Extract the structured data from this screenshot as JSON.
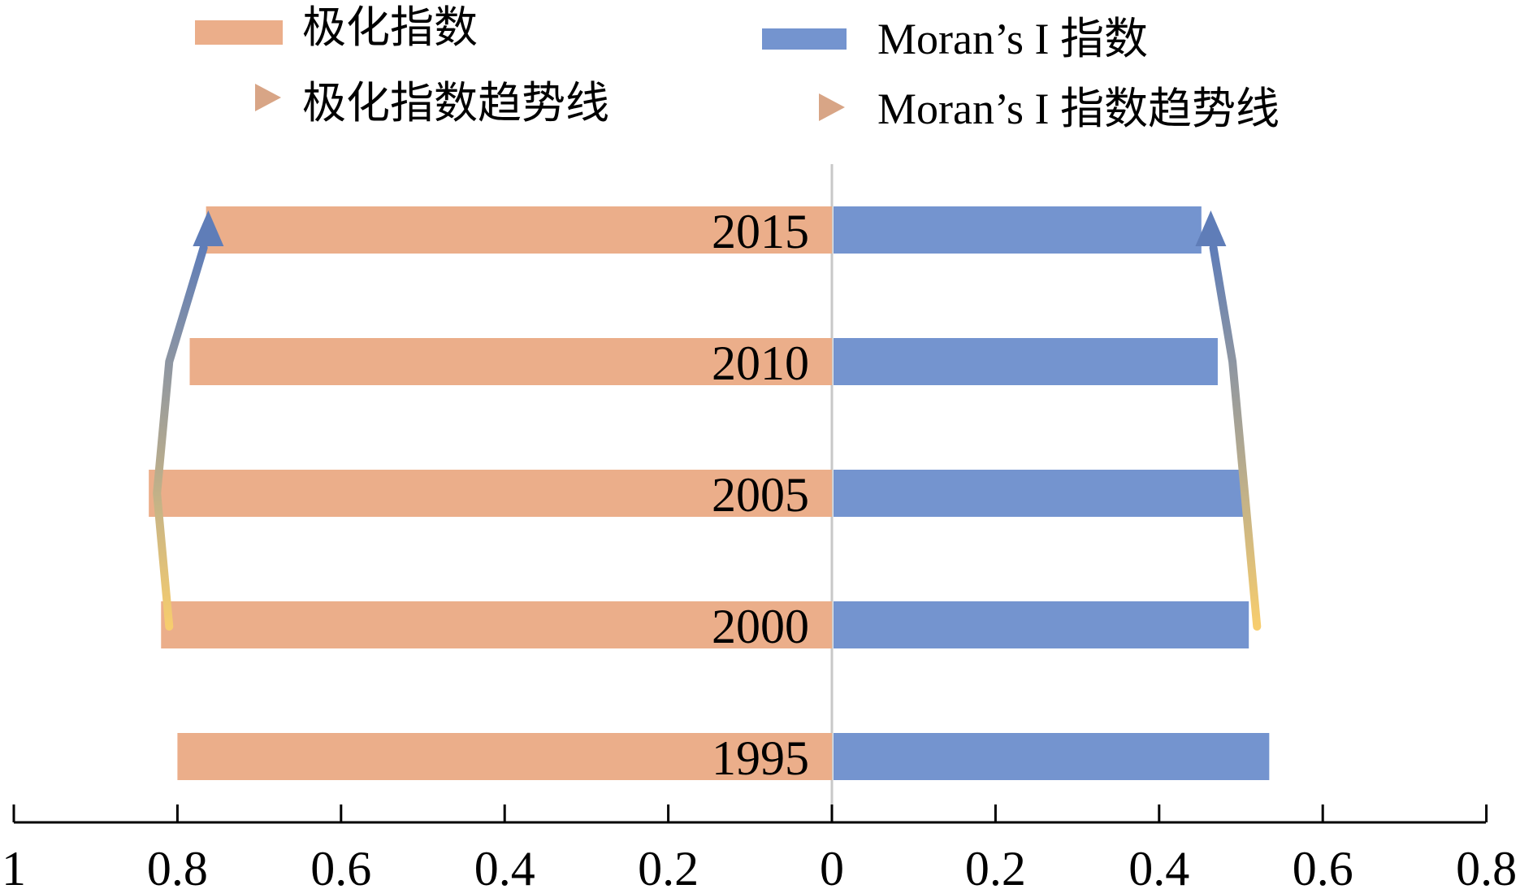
{
  "chart_data": {
    "type": "bar",
    "orientation": "horizontal-diverging",
    "categories": [
      "1995",
      "2000",
      "2005",
      "2010",
      "2015"
    ],
    "series": [
      {
        "name": "极化指数",
        "side": "left",
        "color": "#EBAE8A",
        "values": [
          0.8,
          0.82,
          0.835,
          0.785,
          0.765
        ]
      },
      {
        "name": "Moran’s I 指数",
        "side": "right",
        "color": "#7494CF",
        "values": [
          0.535,
          0.51,
          0.505,
          0.472,
          0.452
        ]
      }
    ],
    "trend_lines": [
      {
        "name": "极化指数趋势线",
        "side": "left",
        "color_start": "#F7CD6E",
        "color_end": "#5F7DB8",
        "points": [
          [
            0.81,
            "2000"
          ],
          [
            0.825,
            "2005"
          ],
          [
            0.81,
            "2010"
          ],
          [
            0.765,
            "2015"
          ]
        ]
      },
      {
        "name": "Moran’s I 指数趋势线",
        "side": "right",
        "color_start": "#F7CD6E",
        "color_end": "#5F7DB8",
        "points": [
          [
            0.52,
            "2000"
          ],
          [
            0.505,
            "2005"
          ],
          [
            0.49,
            "2010"
          ],
          [
            0.465,
            "2015"
          ]
        ]
      }
    ],
    "x_ticks": [
      "1",
      "0.8",
      "0.6",
      "0.4",
      "0.2",
      "0",
      "0.2",
      "0.4",
      "0.6",
      "0.8"
    ],
    "xlim_left": [
      0,
      1
    ],
    "xlim_right": [
      0,
      0.8
    ],
    "legend": [
      {
        "label": "极化指数",
        "kind": "bar",
        "color": "#EBAE8A"
      },
      {
        "label": "Moran’s I 指数",
        "kind": "bar",
        "color": "#7494CF"
      },
      {
        "label": "极化指数趋势线",
        "kind": "arrow"
      },
      {
        "label": "Moran’s I 指数趋势线",
        "kind": "arrow"
      }
    ],
    "legend_position": "top",
    "grid": false,
    "axis_line_color": "#000000",
    "center_line_color": "#C8C8C8"
  }
}
